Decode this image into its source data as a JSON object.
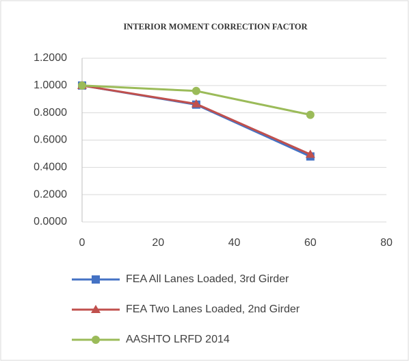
{
  "chart_data": {
    "type": "line",
    "title": "INTERIOR MOMENT CORRECTION FACTOR",
    "x": [
      0,
      30,
      60
    ],
    "series": [
      {
        "name": "FEA All Lanes Loaded, 3rd Girder",
        "color": "#4472c4",
        "marker": "square",
        "values": [
          1.0,
          0.86,
          0.48
        ]
      },
      {
        "name": "FEA Two Lanes Loaded, 2nd Girder",
        "color": "#c0504d",
        "marker": "triangle",
        "values": [
          1.0,
          0.865,
          0.495
        ]
      },
      {
        "name": "AASHTO LRFD 2014",
        "color": "#9bbb59",
        "marker": "circle",
        "values": [
          1.0,
          0.96,
          0.785
        ]
      }
    ],
    "xlim": [
      0,
      80
    ],
    "xticks": [
      0,
      20,
      40,
      60,
      80
    ],
    "ylim": [
      0,
      1.2
    ],
    "yticks": [
      {
        "value": 0,
        "label": "0.0000"
      },
      {
        "value": 0.2,
        "label": "0.2000"
      },
      {
        "value": 0.4,
        "label": "0.4000"
      },
      {
        "value": 0.6,
        "label": "0.6000"
      },
      {
        "value": 0.8,
        "label": "0.8000"
      },
      {
        "value": 1.0,
        "label": "1.0000"
      },
      {
        "value": 1.2,
        "label": "1.2000"
      }
    ],
    "grid": true,
    "legend": "bottom"
  }
}
